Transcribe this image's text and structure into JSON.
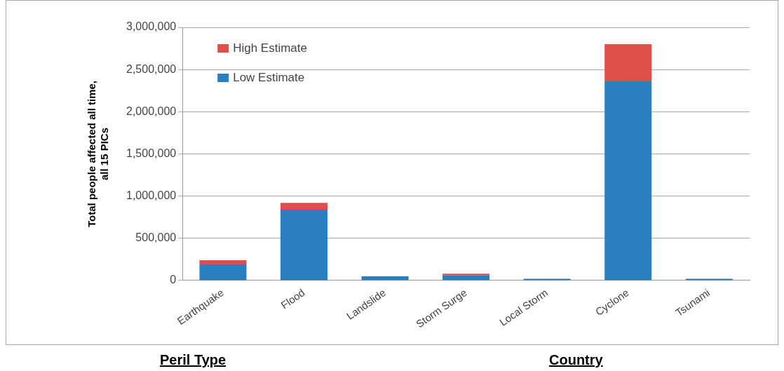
{
  "chart_data": {
    "type": "bar",
    "stacked": true,
    "ylabel": "Total people affected all time,\nall 15 PICs",
    "categories": [
      "Earthquake",
      "Flood",
      "Landslide",
      "Storm Surge",
      "Local Storm",
      "Cyclone",
      "Tsunami"
    ],
    "series": [
      {
        "name": "Low Estimate",
        "color": "#2a7fc0",
        "values": [
          190000,
          840000,
          50000,
          60000,
          20000,
          2360000,
          20000
        ]
      },
      {
        "name": "High Estimate",
        "color": "#de4e4b",
        "values": [
          50000,
          80000,
          0,
          20000,
          0,
          440000,
          0
        ]
      }
    ],
    "ylim": [
      0,
      3000000
    ],
    "yticks": [
      0,
      {
        "value": 500000,
        "label": "500,000"
      },
      {
        "value": 1000000,
        "label": "1,000,000"
      },
      {
        "value": 1500000,
        "label": "1,500,000"
      },
      {
        "value": 2000000,
        "label": "2,000,000"
      },
      {
        "value": 2500000,
        "label": "2,500,000"
      },
      {
        "value": 3000000,
        "label": "3,000,000"
      }
    ],
    "grid": "y",
    "legend": "top left",
    "annotations": [
      "Peril Type",
      "Country"
    ]
  }
}
